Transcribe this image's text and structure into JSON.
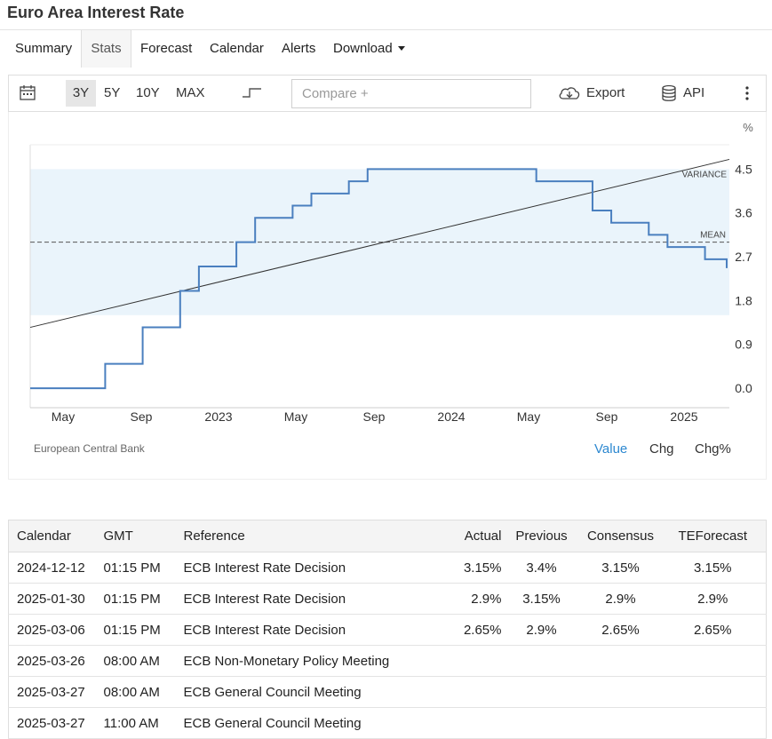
{
  "page": {
    "title": "Euro Area Interest Rate"
  },
  "tabs": [
    {
      "label": "Summary"
    },
    {
      "label": "Stats"
    },
    {
      "label": "Forecast"
    },
    {
      "label": "Calendar"
    },
    {
      "label": "Alerts"
    },
    {
      "label": "Download"
    }
  ],
  "active_tab": "Stats",
  "toolbar": {
    "ranges": [
      "3Y",
      "5Y",
      "10Y",
      "MAX"
    ],
    "selected_range": "3Y",
    "compare_placeholder": "Compare +",
    "export_label": "Export",
    "api_label": "API",
    "icons": [
      "calendar-icon",
      "step-line-icon",
      "cloud-download-icon",
      "database-icon",
      "more-vertical-icon"
    ]
  },
  "chart_data": {
    "type": "line",
    "unit": "%",
    "x_ticks": [
      "May",
      "Sep",
      "2023",
      "May",
      "Sep",
      "2024",
      "May",
      "Sep",
      "2025"
    ],
    "y_ticks": [
      0.0,
      0.9,
      1.8,
      2.7,
      3.6,
      4.5
    ],
    "ylim": [
      -0.4,
      5.0
    ],
    "x_range": [
      "2022-03",
      "2025-04"
    ],
    "grid": false,
    "line_style": "step",
    "series": [
      {
        "x": [
          "2022-03",
          "2022-07",
          "2022-09",
          "2022-11",
          "2022-12",
          "2023-02",
          "2023-03",
          "2023-05",
          "2023-06",
          "2023-08",
          "2023-09",
          "2024-06",
          "2024-09",
          "2024-10",
          "2024-12",
          "2025-01",
          "2025-03"
        ],
        "values": [
          0.0,
          0.5,
          1.25,
          2.0,
          2.5,
          3.0,
          3.5,
          3.75,
          4.0,
          4.25,
          4.5,
          4.25,
          3.65,
          3.4,
          3.15,
          2.9,
          2.65
        ],
        "color": "#4a7fbf"
      }
    ],
    "overlays": {
      "trend_line": {
        "start_value": 1.25,
        "end_value": 4.7,
        "color": "#333333"
      },
      "mean": {
        "value": 3.0,
        "label": "MEAN"
      },
      "variance_band": {
        "low": 1.5,
        "high": 4.5,
        "label": "VARIANCE",
        "color": "#eaf4fb"
      }
    }
  },
  "source": "European Central Bank",
  "value_tabs": [
    "Value",
    "Chg",
    "Chg%"
  ],
  "active_value_tab": "Value",
  "calendar": {
    "headers": [
      "Calendar",
      "GMT",
      "Reference",
      "Actual",
      "Previous",
      "Consensus",
      "TEForecast"
    ],
    "rows": [
      [
        "2024-12-12",
        "01:15 PM",
        "ECB Interest Rate Decision",
        "3.15%",
        "3.4%",
        "3.15%",
        "3.15%"
      ],
      [
        "2025-01-30",
        "01:15 PM",
        "ECB Interest Rate Decision",
        "2.9%",
        "3.15%",
        "2.9%",
        "2.9%"
      ],
      [
        "2025-03-06",
        "01:15 PM",
        "ECB Interest Rate Decision",
        "2.65%",
        "2.9%",
        "2.65%",
        "2.65%"
      ],
      [
        "2025-03-26",
        "08:00 AM",
        "ECB Non-Monetary Policy Meeting",
        "",
        "",
        "",
        ""
      ],
      [
        "2025-03-27",
        "08:00 AM",
        "ECB General Council Meeting",
        "",
        "",
        "",
        ""
      ],
      [
        "2025-03-27",
        "11:00 AM",
        "ECB General Council Meeting",
        "",
        "",
        "",
        ""
      ]
    ]
  }
}
